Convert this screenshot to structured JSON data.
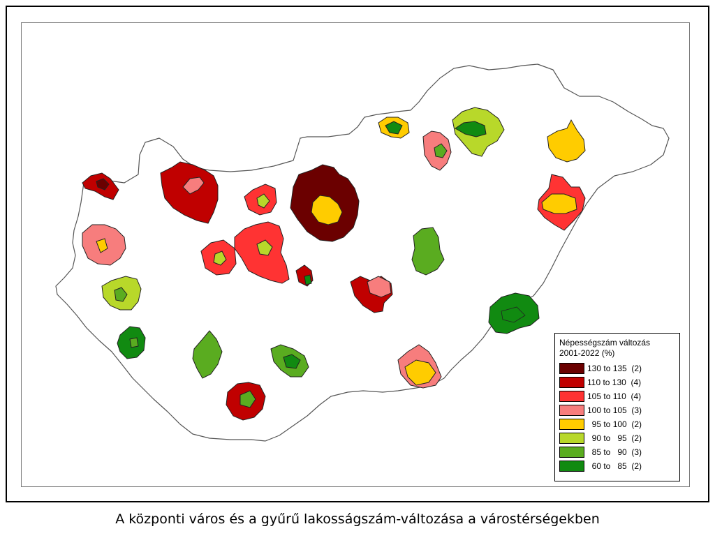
{
  "legend": {
    "title_line1": "Népességszám változás",
    "title_line2": "2001-2022 (%)",
    "classes": [
      {
        "label": "130 to 135  (2)",
        "color": "#6b0000"
      },
      {
        "label": "110 to 130  (4)",
        "color": "#c00000"
      },
      {
        "label": "105 to 110  (4)",
        "color": "#ff3333"
      },
      {
        "label": "100 to 105  (3)",
        "color": "#f77d7d"
      },
      {
        "label": "  95 to 100  (2)",
        "color": "#ffcc00"
      },
      {
        "label": "  90 to   95  (2)",
        "color": "#b8d82a"
      },
      {
        "label": "  85 to   90  (3)",
        "color": "#5aac20"
      },
      {
        "label": "  60 to   85  (2)",
        "color": "#118a11"
      }
    ]
  },
  "caption": "A központi város és a gyűrű lakosságszám-változása a várostérségekben",
  "colors": {
    "border": "#555555",
    "background": "#ffffff"
  },
  "regions": [
    {
      "name": "budapest",
      "ring": "#6b0000",
      "core": "#ffcc00"
    },
    {
      "name": "gyor",
      "ring": "#c00000",
      "core": "#f77d7d"
    },
    {
      "name": "sopron",
      "ring": "#c00000",
      "core": "#6b0000"
    },
    {
      "name": "szombathely",
      "ring": "#f77d7d",
      "core": "#ffcc00"
    },
    {
      "name": "zalaegerszeg",
      "ring": "#b8d82a",
      "core": "#5aac20"
    },
    {
      "name": "nagykanizsa",
      "ring": "#118a11",
      "core": "#5aac20"
    },
    {
      "name": "veszprem",
      "ring": "#ff3333",
      "core": "#b8d82a"
    },
    {
      "name": "tatabanya",
      "ring": "#ff3333",
      "core": "#b8d82a"
    },
    {
      "name": "szekesfehervar",
      "ring": "#ff3333",
      "core": "#b8d82a"
    },
    {
      "name": "dunaujvaros",
      "ring": "#c00000",
      "core": "#118a11"
    },
    {
      "name": "kaposvar",
      "ring": "#5aac20",
      "core": "#5aac20"
    },
    {
      "name": "szekszard",
      "ring": "#5aac20",
      "core": "#118a11"
    },
    {
      "name": "pecs",
      "ring": "#c00000",
      "core": "#5aac20"
    },
    {
      "name": "kecskemet",
      "ring": "#c00000",
      "core": "#f77d7d"
    },
    {
      "name": "szolnok",
      "ring": "#5aac20",
      "core": "#5aac20"
    },
    {
      "name": "szeged",
      "ring": "#f77d7d",
      "core": "#ffcc00"
    },
    {
      "name": "bekescsaba",
      "ring": "#118a11",
      "core": "#118a11"
    },
    {
      "name": "debrecen",
      "ring": "#ff3333",
      "core": "#ffcc00"
    },
    {
      "name": "nyiregyhaza",
      "ring": "#ffcc00",
      "core": "#ffcc00"
    },
    {
      "name": "miskolc",
      "ring": "#b8d82a",
      "core": "#118a11"
    },
    {
      "name": "eger",
      "ring": "#f77d7d",
      "core": "#5aac20"
    },
    {
      "name": "salgotarjan",
      "ring": "#ffcc00",
      "core": "#118a11"
    }
  ]
}
